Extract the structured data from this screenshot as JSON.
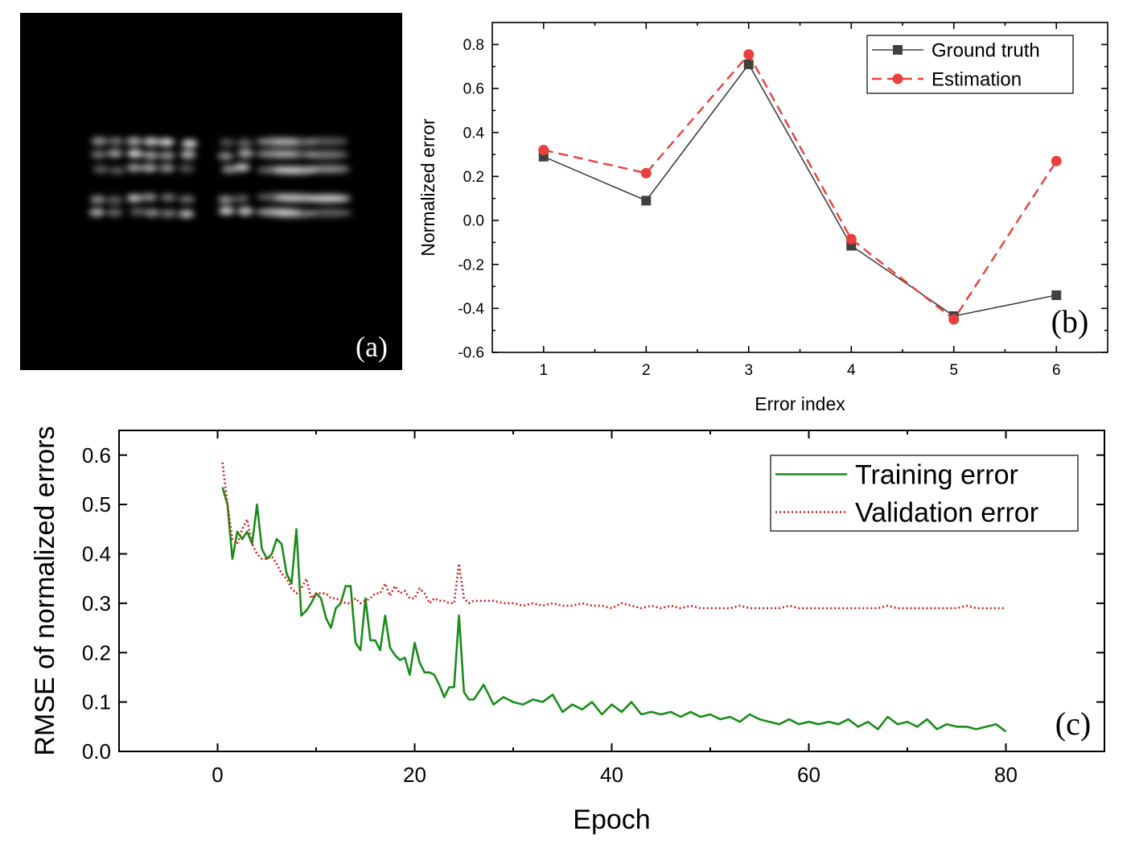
{
  "panel_a": {
    "label": "(a)",
    "description_type": "image"
  },
  "chart_data": [
    {
      "panel": "(b)",
      "type": "line",
      "xlabel": "Error index",
      "ylabel": "Normalized error",
      "xlim": [
        0.5,
        6.5
      ],
      "ylim": [
        -0.6,
        0.9
      ],
      "xticks": [
        1,
        2,
        3,
        4,
        5,
        6
      ],
      "yticks": [
        -0.6,
        -0.4,
        -0.2,
        0.0,
        0.2,
        0.4,
        0.6,
        0.8
      ],
      "ytick_labels": [
        "-0.6",
        "-0.4",
        "-0.2",
        "0.0",
        "0.2",
        "0.4",
        "0.6",
        "0.8"
      ],
      "grid": false,
      "legend": "top-right",
      "x": [
        1,
        2,
        3,
        4,
        5,
        6
      ],
      "series": [
        {
          "name": "Ground truth",
          "values": [
            0.29,
            0.09,
            0.71,
            -0.115,
            -0.435,
            -0.34
          ],
          "color": "#404040",
          "marker": "square",
          "line": "solid"
        },
        {
          "name": "Estimation",
          "values": [
            0.32,
            0.215,
            0.755,
            -0.085,
            -0.45,
            0.27
          ],
          "color": "#e8403c",
          "marker": "circle",
          "line": "dashed"
        }
      ]
    },
    {
      "panel": "(c)",
      "type": "line",
      "xlabel": "Epoch",
      "ylabel": "RMSE of normalized errors",
      "xlim": [
        -10,
        90
      ],
      "ylim": [
        0,
        0.65
      ],
      "xticks": [
        0,
        20,
        40,
        60,
        80
      ],
      "yticks": [
        0.0,
        0.1,
        0.2,
        0.3,
        0.4,
        0.5,
        0.6
      ],
      "ytick_labels": [
        "0.0",
        "0.1",
        "0.2",
        "0.3",
        "0.4",
        "0.5",
        "0.6"
      ],
      "grid": false,
      "legend": "top-right",
      "x": [
        0.5,
        1,
        1.5,
        2,
        2.5,
        3,
        3.5,
        4,
        4.5,
        5,
        5.5,
        6,
        6.5,
        7,
        7.5,
        8,
        8.5,
        9,
        9.5,
        10,
        10.5,
        11,
        11.5,
        12,
        12.5,
        13,
        13.5,
        14,
        14.5,
        15,
        15.5,
        16,
        16.5,
        17,
        17.5,
        18,
        18.5,
        19,
        19.5,
        20,
        20.5,
        21,
        21.5,
        22,
        22.5,
        23,
        23.5,
        24,
        24.5,
        25,
        25.5,
        26,
        27,
        28,
        29,
        30,
        31,
        32,
        33,
        34,
        35,
        36,
        37,
        38,
        39,
        40,
        41,
        42,
        43,
        44,
        45,
        46,
        47,
        48,
        49,
        50,
        51,
        52,
        53,
        54,
        55,
        56,
        57,
        58,
        59,
        60,
        61,
        62,
        63,
        64,
        65,
        66,
        67,
        68,
        69,
        70,
        71,
        72,
        73,
        74,
        75,
        76,
        77,
        78,
        79,
        80
      ],
      "series": [
        {
          "name": "Training error",
          "color": "#1a8c1a",
          "line": "solid",
          "values": [
            0.535,
            0.5,
            0.39,
            0.445,
            0.43,
            0.445,
            0.42,
            0.5,
            0.41,
            0.39,
            0.4,
            0.43,
            0.42,
            0.36,
            0.34,
            0.45,
            0.275,
            0.285,
            0.3,
            0.32,
            0.31,
            0.27,
            0.25,
            0.29,
            0.3,
            0.335,
            0.335,
            0.22,
            0.205,
            0.31,
            0.225,
            0.225,
            0.205,
            0.275,
            0.21,
            0.195,
            0.185,
            0.19,
            0.155,
            0.22,
            0.18,
            0.16,
            0.16,
            0.155,
            0.135,
            0.11,
            0.13,
            0.13,
            0.275,
            0.12,
            0.105,
            0.105,
            0.135,
            0.095,
            0.11,
            0.1,
            0.095,
            0.105,
            0.1,
            0.115,
            0.08,
            0.095,
            0.085,
            0.1,
            0.075,
            0.095,
            0.08,
            0.1,
            0.075,
            0.08,
            0.075,
            0.08,
            0.07,
            0.08,
            0.07,
            0.075,
            0.065,
            0.07,
            0.06,
            0.075,
            0.065,
            0.06,
            0.055,
            0.065,
            0.055,
            0.06,
            0.055,
            0.06,
            0.055,
            0.065,
            0.05,
            0.06,
            0.045,
            0.07,
            0.055,
            0.06,
            0.05,
            0.065,
            0.045,
            0.055,
            0.05,
            0.05,
            0.045,
            0.05,
            0.055,
            0.04
          ]
        },
        {
          "name": "Validation error",
          "color": "#d42020",
          "line": "dotted",
          "values": [
            0.585,
            0.5,
            0.43,
            0.42,
            0.45,
            0.47,
            0.42,
            0.4,
            0.39,
            0.39,
            0.395,
            0.38,
            0.36,
            0.35,
            0.33,
            0.32,
            0.33,
            0.35,
            0.31,
            0.32,
            0.32,
            0.32,
            0.31,
            0.31,
            0.305,
            0.3,
            0.3,
            0.31,
            0.3,
            0.305,
            0.31,
            0.32,
            0.32,
            0.34,
            0.315,
            0.335,
            0.32,
            0.325,
            0.31,
            0.31,
            0.33,
            0.32,
            0.3,
            0.31,
            0.305,
            0.305,
            0.3,
            0.3,
            0.38,
            0.31,
            0.3,
            0.305,
            0.305,
            0.305,
            0.3,
            0.3,
            0.295,
            0.3,
            0.295,
            0.3,
            0.295,
            0.295,
            0.3,
            0.295,
            0.295,
            0.29,
            0.3,
            0.295,
            0.29,
            0.295,
            0.29,
            0.295,
            0.29,
            0.295,
            0.29,
            0.29,
            0.29,
            0.29,
            0.295,
            0.29,
            0.29,
            0.29,
            0.29,
            0.295,
            0.29,
            0.29,
            0.29,
            0.29,
            0.29,
            0.29,
            0.29,
            0.29,
            0.29,
            0.295,
            0.29,
            0.29,
            0.29,
            0.29,
            0.29,
            0.29,
            0.29,
            0.295,
            0.29,
            0.29,
            0.29,
            0.29
          ]
        }
      ]
    }
  ]
}
